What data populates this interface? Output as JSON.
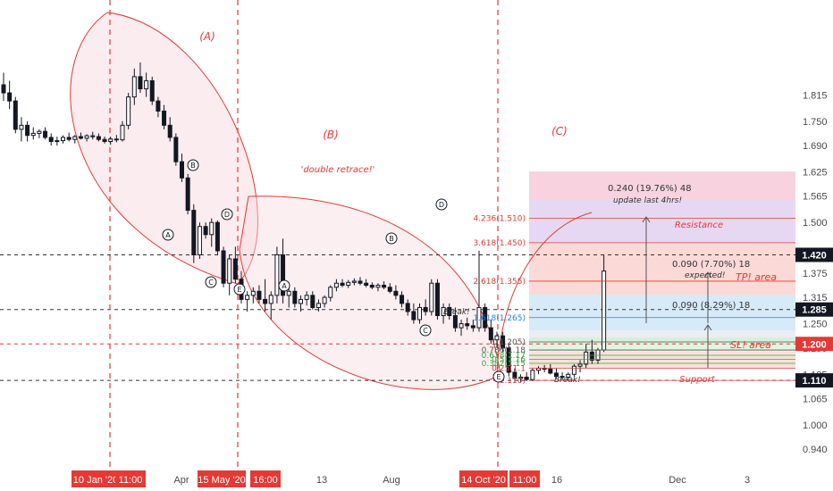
{
  "chart_data": {
    "type": "candlestick",
    "price_ticks": [
      "1.815",
      "1.750",
      "1.690",
      "1.625",
      "1.565",
      "1.500",
      "1.375",
      "1.315",
      "1.250",
      "1.190",
      "1.125",
      "1.065",
      "1.000",
      "0.940"
    ],
    "price_badges": [
      {
        "label": "1.420",
        "value": 1.42,
        "style": "dark"
      },
      {
        "label": "1.285",
        "value": 1.285,
        "style": "dark"
      },
      {
        "label": "1.200",
        "value": 1.2,
        "style": "red"
      },
      {
        "label": "1.110",
        "value": 1.11,
        "style": "dark"
      }
    ],
    "time_labels": [
      {
        "text": "10 Jan '20",
        "style": "red"
      },
      {
        "text": "11:00",
        "style": "red"
      },
      {
        "text": "Apr",
        "style": "plain"
      },
      {
        "text": "15 May '20",
        "style": "red"
      },
      {
        "text": "16:00",
        "style": "red"
      },
      {
        "text": "13",
        "style": "plain"
      },
      {
        "text": "Aug",
        "style": "plain"
      },
      {
        "text": "14 Oct '20",
        "style": "red"
      },
      {
        "text": "11:00",
        "style": "red"
      },
      {
        "text": "16",
        "style": "plain"
      },
      {
        "text": "Dec",
        "style": "plain"
      },
      {
        "text": "3",
        "style": "plain"
      }
    ],
    "fib_levels": [
      {
        "label": "4.236(1.510)",
        "price": 1.51
      },
      {
        "label": "3.618(1.450)",
        "price": 1.45
      },
      {
        "label": "2.618(1.355)",
        "price": 1.355
      },
      {
        "label": "1.618(1.265)",
        "price": 1.265
      },
      {
        "label": "1(1.205)",
        "price": 1.205
      },
      {
        "label": "0.786(1.18",
        "price": 1.185
      },
      {
        "label": "0.618(1.17",
        "price": 1.172
      },
      {
        "label": "0.5(1.16",
        "price": 1.162
      },
      {
        "label": "0.382(1.15",
        "price": 1.152
      },
      {
        "label": "0.25(1.1",
        "price": 1.14
      },
      {
        "label": "(1.110)",
        "price": 1.11
      }
    ],
    "measures": [
      {
        "text": "0.240 (19.76%) 48",
        "sub": "update last 4hrs!"
      },
      {
        "text": "0.090 (7.70%) 18",
        "sub": "expected!"
      },
      {
        "text": "0.090 (8.29%) 18",
        "sub": ""
      }
    ],
    "annotations": {
      "wave_a": "(A)",
      "wave_b": "(B)",
      "wave_c": "(C)",
      "double_retrace": "'double retrace!'",
      "resistance": "Resistance",
      "tp_area": "TP! area",
      "sl_area": "SL! area",
      "support": "Support",
      "break1": "Break!",
      "break2": "Break!"
    },
    "circle_labels": [
      "A",
      "B",
      "C",
      "D",
      "E",
      "A",
      "B",
      "C",
      "D",
      "E"
    ],
    "horizontal_lines": [
      1.42,
      1.285,
      1.2,
      1.11
    ],
    "colors": {
      "red": "#e53935",
      "dark": "#131722",
      "resistance": "#f7d6e0",
      "resistance_top": "#f3c6d6",
      "purple": "#e3d6f2",
      "tp_red": "#fbd9d6",
      "tp_blue": "#d6eaf8",
      "sl_green": "#d7f0da"
    },
    "candles": [
      [
        1.84,
        1.87,
        1.8,
        1.82
      ],
      [
        1.82,
        1.85,
        1.78,
        1.8
      ],
      [
        1.8,
        1.81,
        1.72,
        1.73
      ],
      [
        1.73,
        1.76,
        1.7,
        1.74
      ],
      [
        1.74,
        1.75,
        1.7,
        1.715
      ],
      [
        1.715,
        1.735,
        1.705,
        1.72
      ],
      [
        1.72,
        1.73,
        1.708,
        1.725
      ],
      [
        1.725,
        1.735,
        1.705,
        1.71
      ],
      [
        1.71,
        1.72,
        1.69,
        1.7
      ],
      [
        1.7,
        1.712,
        1.69,
        1.702
      ],
      [
        1.702,
        1.715,
        1.695,
        1.71
      ],
      [
        1.71,
        1.722,
        1.7,
        1.705
      ],
      [
        1.705,
        1.716,
        1.695,
        1.712
      ],
      [
        1.712,
        1.722,
        1.705,
        1.708
      ],
      [
        1.708,
        1.718,
        1.7,
        1.714
      ],
      [
        1.714,
        1.724,
        1.705,
        1.712
      ],
      [
        1.712,
        1.72,
        1.7,
        1.705
      ],
      [
        1.705,
        1.712,
        1.695,
        1.7
      ],
      [
        1.7,
        1.712,
        1.692,
        1.706
      ],
      [
        1.706,
        1.716,
        1.698,
        1.704
      ],
      [
        1.704,
        1.75,
        1.7,
        1.74
      ],
      [
        1.74,
        1.82,
        1.73,
        1.81
      ],
      [
        1.81,
        1.88,
        1.79,
        1.86
      ],
      [
        1.86,
        1.895,
        1.82,
        1.83
      ],
      [
        1.83,
        1.87,
        1.81,
        1.85
      ],
      [
        1.85,
        1.86,
        1.79,
        1.8
      ],
      [
        1.8,
        1.81,
        1.76,
        1.775
      ],
      [
        1.775,
        1.79,
        1.73,
        1.74
      ],
      [
        1.74,
        1.76,
        1.7,
        1.71
      ],
      [
        1.71,
        1.72,
        1.64,
        1.65
      ],
      [
        1.65,
        1.67,
        1.6,
        1.61
      ],
      [
        1.61,
        1.62,
        1.52,
        1.53
      ],
      [
        1.53,
        1.545,
        1.4,
        1.42
      ],
      [
        1.42,
        1.5,
        1.41,
        1.49
      ],
      [
        1.49,
        1.5,
        1.46,
        1.47
      ],
      [
        1.47,
        1.51,
        1.44,
        1.5
      ],
      [
        1.5,
        1.505,
        1.42,
        1.43
      ],
      [
        1.43,
        1.44,
        1.34,
        1.35
      ],
      [
        1.35,
        1.42,
        1.32,
        1.41
      ],
      [
        1.41,
        1.44,
        1.35,
        1.36
      ],
      [
        1.36,
        1.38,
        1.3,
        1.31
      ],
      [
        1.31,
        1.33,
        1.28,
        1.32
      ],
      [
        1.32,
        1.34,
        1.3,
        1.33
      ],
      [
        1.33,
        1.345,
        1.3,
        1.31
      ],
      [
        1.31,
        1.36,
        1.28,
        1.3
      ],
      [
        1.3,
        1.33,
        1.26,
        1.32
      ],
      [
        1.32,
        1.44,
        1.3,
        1.42
      ],
      [
        1.42,
        1.46,
        1.3,
        1.32
      ],
      [
        1.32,
        1.35,
        1.29,
        1.33
      ],
      [
        1.33,
        1.34,
        1.29,
        1.3
      ],
      [
        1.3,
        1.32,
        1.28,
        1.31
      ],
      [
        1.31,
        1.33,
        1.295,
        1.32
      ],
      [
        1.32,
        1.33,
        1.285,
        1.29
      ],
      [
        1.29,
        1.31,
        1.28,
        1.3
      ],
      [
        1.3,
        1.32,
        1.29,
        1.315
      ],
      [
        1.315,
        1.345,
        1.305,
        1.34
      ],
      [
        1.34,
        1.36,
        1.33,
        1.35
      ],
      [
        1.35,
        1.36,
        1.34,
        1.345
      ],
      [
        1.345,
        1.358,
        1.338,
        1.352
      ],
      [
        1.352,
        1.362,
        1.345,
        1.355
      ],
      [
        1.355,
        1.365,
        1.345,
        1.35
      ],
      [
        1.35,
        1.36,
        1.34,
        1.345
      ],
      [
        1.345,
        1.352,
        1.335,
        1.34
      ],
      [
        1.34,
        1.35,
        1.33,
        1.345
      ],
      [
        1.345,
        1.355,
        1.335,
        1.34
      ],
      [
        1.34,
        1.35,
        1.325,
        1.33
      ],
      [
        1.33,
        1.345,
        1.31,
        1.32
      ],
      [
        1.32,
        1.33,
        1.29,
        1.3
      ],
      [
        1.3,
        1.31,
        1.27,
        1.28
      ],
      [
        1.28,
        1.3,
        1.25,
        1.26
      ],
      [
        1.26,
        1.3,
        1.25,
        1.29
      ],
      [
        1.29,
        1.31,
        1.27,
        1.28
      ],
      [
        1.28,
        1.36,
        1.27,
        1.35
      ],
      [
        1.35,
        1.36,
        1.26,
        1.27
      ],
      [
        1.27,
        1.3,
        1.25,
        1.29
      ],
      [
        1.29,
        1.3,
        1.26,
        1.27
      ],
      [
        1.27,
        1.29,
        1.23,
        1.24
      ],
      [
        1.24,
        1.26,
        1.22,
        1.25
      ],
      [
        1.25,
        1.265,
        1.235,
        1.245
      ],
      [
        1.245,
        1.26,
        1.23,
        1.24
      ],
      [
        1.24,
        1.43,
        1.23,
        1.29
      ],
      [
        1.29,
        1.3,
        1.23,
        1.24
      ],
      [
        1.24,
        1.26,
        1.2,
        1.21
      ],
      [
        1.21,
        1.23,
        1.19,
        1.22
      ],
      [
        1.22,
        1.23,
        1.18,
        1.19
      ],
      [
        1.19,
        1.2,
        1.12,
        1.13
      ],
      [
        1.13,
        1.14,
        1.105,
        1.115
      ],
      [
        1.115,
        1.125,
        1.105,
        1.118
      ],
      [
        1.118,
        1.13,
        1.108,
        1.112
      ],
      [
        1.112,
        1.14,
        1.108,
        1.135
      ],
      [
        1.135,
        1.145,
        1.125,
        1.14
      ],
      [
        1.14,
        1.148,
        1.13,
        1.138
      ],
      [
        1.138,
        1.15,
        1.125,
        1.128
      ],
      [
        1.128,
        1.14,
        1.115,
        1.12
      ],
      [
        1.12,
        1.13,
        1.11,
        1.118
      ],
      [
        1.118,
        1.13,
        1.11,
        1.125
      ],
      [
        1.125,
        1.15,
        1.12,
        1.145
      ],
      [
        1.145,
        1.16,
        1.13,
        1.15
      ],
      [
        1.15,
        1.2,
        1.14,
        1.18
      ],
      [
        1.18,
        1.21,
        1.15,
        1.16
      ],
      [
        1.16,
        1.19,
        1.15,
        1.185
      ],
      [
        1.185,
        1.42,
        1.18,
        1.38
      ]
    ]
  }
}
